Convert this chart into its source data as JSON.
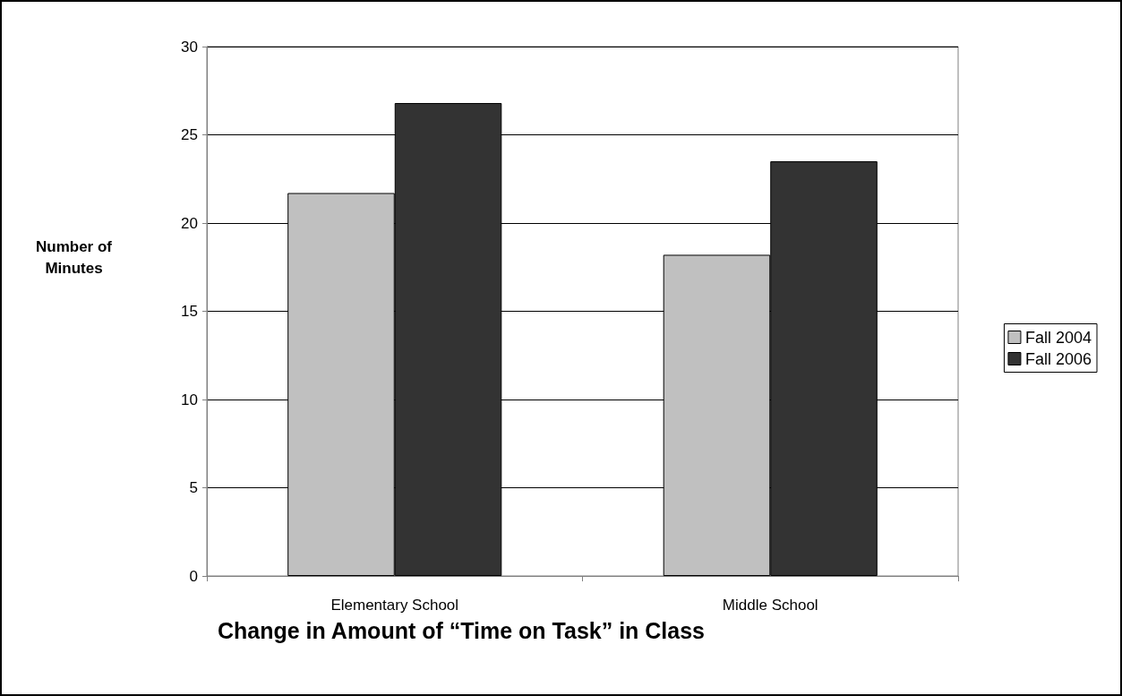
{
  "chart_data": {
    "type": "bar",
    "title": "Change in Amount of “Time on Task” in Class",
    "ylabel": "Number of\nMinutes",
    "categories": [
      "Elementary School",
      "Middle School"
    ],
    "series": [
      {
        "name": "Fall 2004",
        "color": "#c0c0c0",
        "values": [
          21.7,
          18.2
        ]
      },
      {
        "name": "Fall 2006",
        "color": "#333333",
        "values": [
          26.8,
          23.5
        ]
      }
    ],
    "ylim": [
      0,
      30
    ],
    "yticks": [
      0,
      5,
      10,
      15,
      20,
      25,
      30
    ],
    "grid": "y",
    "legend": "right"
  }
}
